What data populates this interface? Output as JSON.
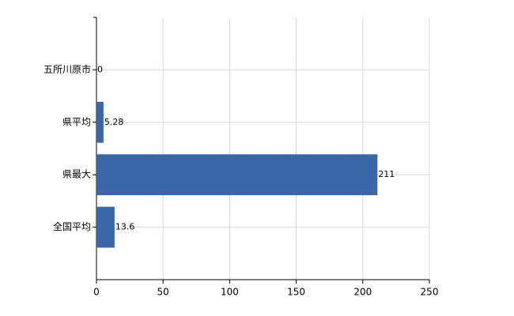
{
  "chart_data": {
    "type": "bar",
    "horizontal": true,
    "categories": [
      "五所川原市",
      "県平均",
      "県最大",
      "全国平均"
    ],
    "values": [
      0,
      5.28,
      211,
      13.6
    ],
    "color": "#3a67a6",
    "xlim": [
      0,
      250
    ],
    "xticks": [
      0,
      50,
      100,
      150,
      200,
      250
    ],
    "grid": true
  }
}
